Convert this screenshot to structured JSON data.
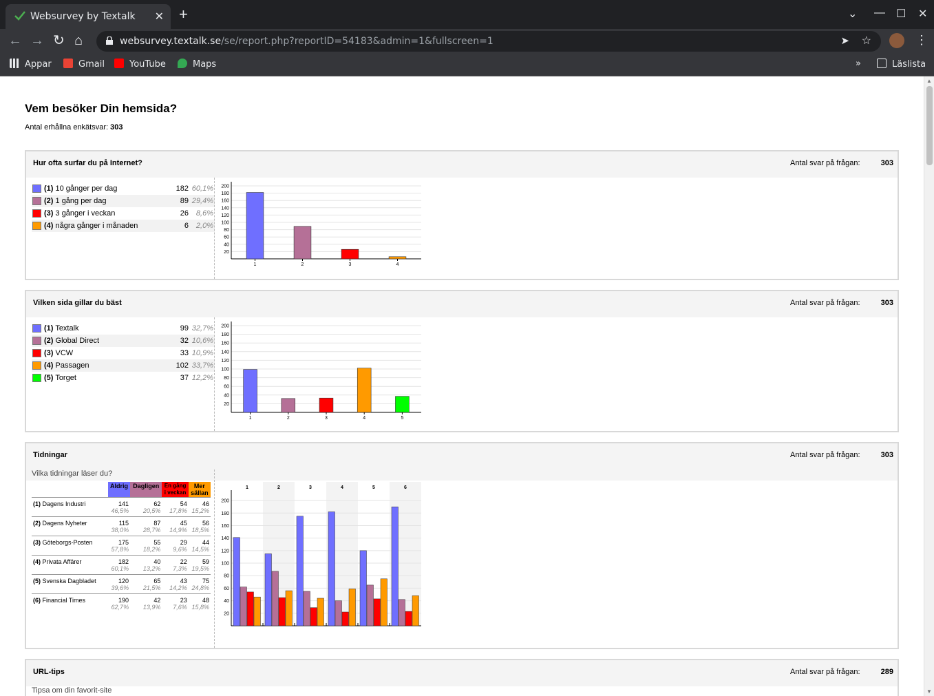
{
  "browser": {
    "tab_title": "Websurvey by Textalk",
    "url_host": "websurvey.textalk.se",
    "url_path": "/se/report.php?reportID=54183&admin=1&fullscreen=1",
    "bookmarks": [
      {
        "label": "Appar",
        "icon": "apps-grid-icon",
        "color": "#e8eaed"
      },
      {
        "label": "Gmail",
        "icon": "gmail-icon",
        "color": "#ea4335"
      },
      {
        "label": "YouTube",
        "icon": "youtube-icon",
        "color": "#ff0000"
      },
      {
        "label": "Maps",
        "icon": "maps-pin-icon",
        "color": "#34a853"
      }
    ],
    "reading_list": "Läslista"
  },
  "report": {
    "title": "Vem besöker Din hemsida?",
    "responses_label": "Antal erhållna enkätsvar:",
    "responses_count": "303"
  },
  "answers_label": "Antal svar på frågan:",
  "questions": [
    {
      "title": "Hur ofta surfar du på Internet?",
      "answers": "303",
      "options": [
        {
          "num": "(1)",
          "label": "10 gånger per dag",
          "value": "182",
          "pct": "60,1%",
          "color": "#6f6fff"
        },
        {
          "num": "(2)",
          "label": "1 gång per dag",
          "value": "89",
          "pct": "29,4%",
          "color": "#b57097"
        },
        {
          "num": "(3)",
          "label": "3 gånger i veckan",
          "value": "26",
          "pct": "8,6%",
          "color": "#ff0000"
        },
        {
          "num": "(4)",
          "label": "några gånger i månaden",
          "value": "6",
          "pct": "2,0%",
          "color": "#ff9a00"
        }
      ]
    },
    {
      "title": "Vilken sida gillar du bäst",
      "answers": "303",
      "options": [
        {
          "num": "(1)",
          "label": "Textalk",
          "value": "99",
          "pct": "32,7%",
          "color": "#6f6fff"
        },
        {
          "num": "(2)",
          "label": "Global Direct",
          "value": "32",
          "pct": "10,6%",
          "color": "#b57097"
        },
        {
          "num": "(3)",
          "label": "VCW",
          "value": "33",
          "pct": "10,9%",
          "color": "#ff0000"
        },
        {
          "num": "(4)",
          "label": "Passagen",
          "value": "102",
          "pct": "33,7%",
          "color": "#ff9a00"
        },
        {
          "num": "(5)",
          "label": "Torget",
          "value": "37",
          "pct": "12,2%",
          "color": "#00ff00"
        }
      ]
    },
    {
      "title": "Tidningar",
      "answers": "303",
      "subtitle": "Vilka tidningar läser du?",
      "columns": [
        {
          "label": "Aldrig",
          "color": "#6f6fff"
        },
        {
          "label": "Dagligen",
          "color": "#b57097"
        },
        {
          "label": "En gång i veckan",
          "color": "#ff0000"
        },
        {
          "label": "Mer sällan",
          "color": "#ff9a00"
        }
      ],
      "rows": [
        {
          "num": "(1)",
          "label": "Dagens Industri",
          "values": [
            "141",
            "62",
            "54",
            "46"
          ],
          "pcts": [
            "46,5%",
            "20,5%",
            "17,8%",
            "15,2%"
          ]
        },
        {
          "num": "(2)",
          "label": "Dagens Nyheter",
          "values": [
            "115",
            "87",
            "45",
            "56"
          ],
          "pcts": [
            "38,0%",
            "28,7%",
            "14,9%",
            "18,5%"
          ]
        },
        {
          "num": "(3)",
          "label": "Göteborgs-Posten",
          "values": [
            "175",
            "55",
            "29",
            "44"
          ],
          "pcts": [
            "57,8%",
            "18,2%",
            "9,6%",
            "14,5%"
          ]
        },
        {
          "num": "(4)",
          "label": "Privata Affärer",
          "values": [
            "182",
            "40",
            "22",
            "59"
          ],
          "pcts": [
            "60,1%",
            "13,2%",
            "7,3%",
            "19,5%"
          ]
        },
        {
          "num": "(5)",
          "label": "Svenska Dagbladet",
          "values": [
            "120",
            "65",
            "43",
            "75"
          ],
          "pcts": [
            "39,6%",
            "21,5%",
            "14,2%",
            "24,8%"
          ]
        },
        {
          "num": "(6)",
          "label": "Financial Times",
          "values": [
            "190",
            "42",
            "23",
            "48"
          ],
          "pcts": [
            "62,7%",
            "13,9%",
            "7,6%",
            "15,8%"
          ]
        }
      ]
    },
    {
      "title": "URL-tips",
      "answers": "289",
      "subtitle": "Tipsa om din favorit-site"
    }
  ],
  "chart_data": [
    {
      "type": "bar",
      "categories": [
        "1",
        "2",
        "3",
        "4"
      ],
      "values": [
        182,
        89,
        26,
        6
      ],
      "ylim": [
        0,
        200
      ],
      "yticks": [
        "20",
        "40",
        "60",
        "80",
        "100",
        "120",
        "140",
        "160",
        "180",
        "200"
      ],
      "colors": [
        "#6f6fff",
        "#b57097",
        "#ff0000",
        "#ff9a00"
      ]
    },
    {
      "type": "bar",
      "categories": [
        "1",
        "2",
        "3",
        "4",
        "5"
      ],
      "values": [
        99,
        32,
        33,
        102,
        37
      ],
      "ylim": [
        0,
        200
      ],
      "yticks": [
        "20",
        "40",
        "60",
        "80",
        "100",
        "120",
        "140",
        "160",
        "180",
        "200"
      ],
      "colors": [
        "#6f6fff",
        "#b57097",
        "#ff0000",
        "#ff9a00",
        "#00ff00"
      ]
    },
    {
      "type": "bar",
      "categories": [
        "1",
        "2",
        "3",
        "4",
        "5",
        "6"
      ],
      "series": [
        {
          "name": "Aldrig",
          "values": [
            141,
            115,
            175,
            182,
            120,
            190
          ]
        },
        {
          "name": "Dagligen",
          "values": [
            62,
            87,
            55,
            40,
            65,
            42
          ]
        },
        {
          "name": "En gång i veckan",
          "values": [
            54,
            45,
            29,
            22,
            43,
            23
          ]
        },
        {
          "name": "Mer sällan",
          "values": [
            46,
            56,
            44,
            59,
            75,
            48
          ]
        }
      ],
      "ylim": [
        0,
        210
      ],
      "yticks": [
        "20",
        "40",
        "60",
        "80",
        "100",
        "120",
        "140",
        "160",
        "180",
        "200"
      ],
      "colors": [
        "#6f6fff",
        "#b57097",
        "#ff0000",
        "#ff9a00"
      ]
    }
  ]
}
